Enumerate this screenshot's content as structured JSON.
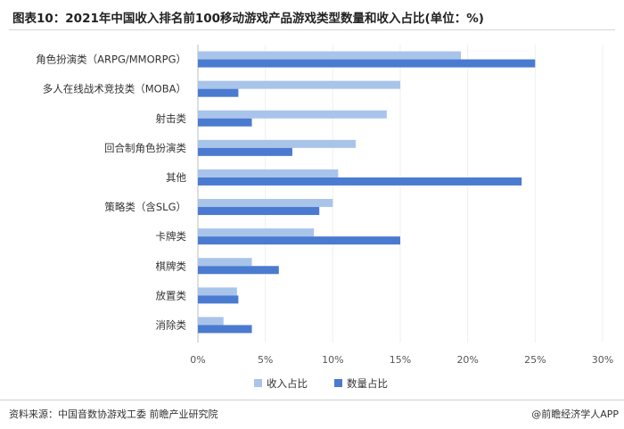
{
  "header": {
    "title": "图表10：2021年中国收入排名前100移动游戏产品游戏类型数量和收入占比(单位：%)"
  },
  "footer": {
    "source": "资料来源：中国音数协游戏工委 前瞻产业研究院",
    "brand": "@前瞻经济学人APP"
  },
  "chart_data": {
    "type": "bar",
    "orientation": "horizontal",
    "categories": [
      "角色扮演类（ARPG/MMORPG）",
      "多人在线战术竞技类（MOBA）",
      "射击类",
      "回合制角色扮演类",
      "其他",
      "策略类（含SLG）",
      "卡牌类",
      "棋牌类",
      "放置类",
      "消除类"
    ],
    "series": [
      {
        "name": "收入占比",
        "color": "#a9c4ea",
        "values": [
          19.5,
          15.0,
          14.0,
          11.7,
          10.4,
          10.0,
          8.6,
          4.0,
          2.9,
          1.9
        ]
      },
      {
        "name": "数量占比",
        "color": "#4a7bd0",
        "values": [
          25.0,
          3.0,
          4.0,
          7.0,
          24.0,
          9.0,
          15.0,
          6.0,
          3.0,
          4.0
        ]
      }
    ],
    "xlim": [
      0,
      30
    ],
    "xticks": [
      "0%",
      "5%",
      "10%",
      "15%",
      "20%",
      "25%",
      "30%"
    ],
    "xtick_values": [
      0,
      5,
      10,
      15,
      20,
      25,
      30
    ],
    "legend_position": "bottom"
  }
}
